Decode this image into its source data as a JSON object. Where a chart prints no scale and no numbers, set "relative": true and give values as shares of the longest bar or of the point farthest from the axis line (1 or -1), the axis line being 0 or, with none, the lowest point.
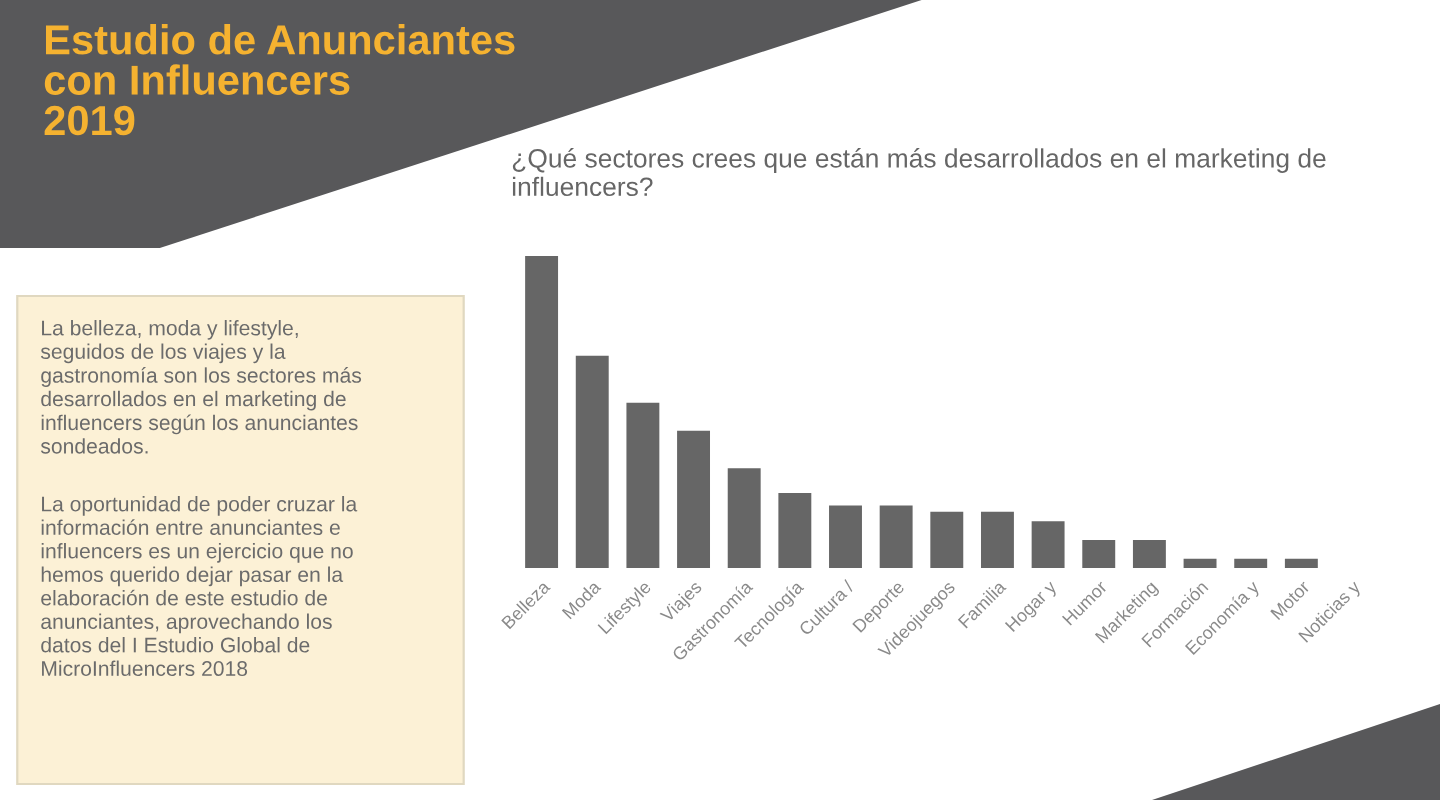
{
  "chart_data": {
    "type": "bar",
    "title": "Estudio de Anunciantes\ncon Influencers\n2019",
    "subtitle": "¿Qué sectores crees que están más desarrollados en el marketing de\ninfluencers?",
    "categories": [
      "Belleza",
      "Moda",
      "Lifestyle",
      "Viajes",
      "Gastronomía",
      "Tecnología",
      "Cultura /",
      "Deporte",
      "Videojuegos",
      "Familia",
      "Hogar y",
      "Humor",
      "Marketing",
      "Formación",
      "Economía y",
      "Motor",
      "Noticias y"
    ],
    "values": [
      1,
      0.68,
      0.53,
      0.44,
      0.32,
      0.24,
      0.2,
      0.2,
      0.18,
      0.18,
      0.15,
      0.09,
      0.09,
      0.03,
      0.03,
      0.03,
      0
    ],
    "color": "#666666",
    "relative": true,
    "grid": false,
    "legend": false,
    "annotations": [
      "La belleza, moda y lifestyle,\nseguidos de los viajes y la\ngastronomía son los sectores más\ndesarrollados en el marketing de\ninfluencers según los anunciantes\nsondeados.",
      "La oportunidad de poder cruzar la\ninformación entre anunciantes e\ninfluencers es un ejercicio que no\nhemos querido dejar pasar en la\nelaboración de este estudio de\nanunciantes, aprovechando los\ndatos del I Estudio Global de\nMicroInfluencers 2018"
    ]
  }
}
